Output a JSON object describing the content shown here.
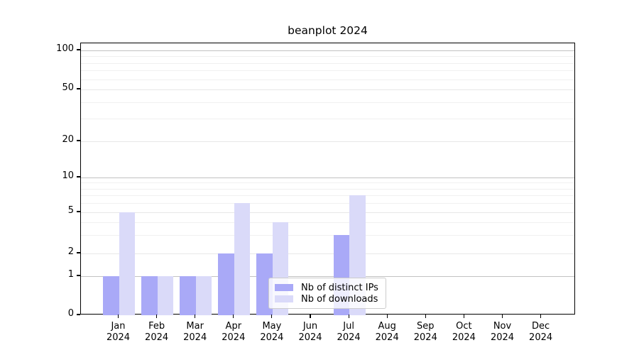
{
  "chart_data": {
    "type": "bar",
    "title": "beanplot 2024",
    "categories": [
      "Jan",
      "Feb",
      "Mar",
      "Apr",
      "May",
      "Jun",
      "Jul",
      "Aug",
      "Sep",
      "Oct",
      "Nov",
      "Dec"
    ],
    "year_label": "2024",
    "series": [
      {
        "name": "Nb of distinct IPs",
        "color": "#a9a9f7",
        "values": [
          1,
          1,
          1,
          2,
          2,
          0,
          3,
          0,
          0,
          0,
          0,
          0
        ]
      },
      {
        "name": "Nb of downloads",
        "color": "#dadaf9",
        "values": [
          5,
          1,
          1,
          6,
          4,
          0,
          7,
          0,
          0,
          0,
          0,
          0
        ]
      }
    ],
    "y_ticks": [
      0,
      1,
      2,
      5,
      10,
      20,
      50,
      100
    ],
    "ylim": [
      0,
      120
    ],
    "yscale": "log-like-with-zero-baseline",
    "xlabel": "",
    "ylabel": "",
    "grid": true,
    "legend_position": "lower center",
    "colors": {
      "grid_decade": "#c2c2c2",
      "grid_mid": "#e7e7e7",
      "grid_minor": "#f0f0f0",
      "spine": "#000000",
      "legend_border": "#cccccc",
      "background": "#ffffff"
    }
  }
}
